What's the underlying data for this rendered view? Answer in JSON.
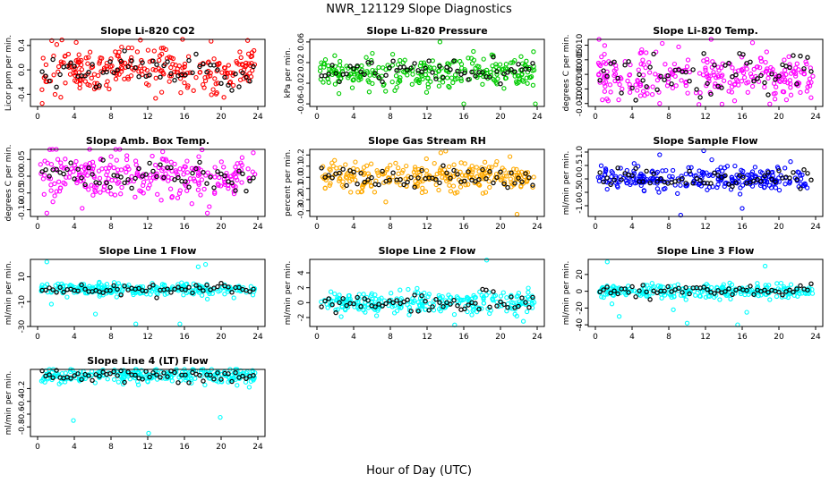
{
  "suptitle": "NWR_121129  Slope Diagnostics",
  "xlabel": "Hour of Day (UTC)",
  "chart_data": [
    {
      "type": "scatter",
      "title": "Slope Li-820 CO2",
      "ylabel": "Licor ppm per min.",
      "xlim": [
        0,
        24
      ],
      "ylim": [
        -0.6,
        0.5
      ],
      "xticks": [
        0,
        4,
        8,
        12,
        16,
        20,
        24
      ],
      "yticks": [
        -0.4,
        0.0,
        0.4
      ],
      "ytick_labels": [
        "-0.4",
        "0.0",
        "0.4"
      ],
      "spread": 0.18,
      "outliers": [
        [
          0.5,
          -0.55
        ],
        [
          4.2,
          0.45
        ],
        [
          15.8,
          0.5
        ],
        [
          20.3,
          -0.45
        ]
      ],
      "color": "#ff0000"
    },
    {
      "type": "scatter",
      "title": "Slope Li-820 Pressure",
      "ylabel": "kPa per min.",
      "xlim": [
        0,
        24
      ],
      "ylim": [
        -0.065,
        0.065
      ],
      "xticks": [
        0,
        4,
        8,
        12,
        16,
        20,
        24
      ],
      "yticks": [
        -0.06,
        -0.02,
        0.02,
        0.06
      ],
      "ytick_labels": [
        "-0.06",
        "-0.02",
        "0.02",
        "0.06"
      ],
      "spread": 0.014,
      "outliers": [
        [
          13.4,
          0.06
        ],
        [
          16.0,
          -0.06
        ],
        [
          23.8,
          -0.06
        ],
        [
          2.4,
          -0.04
        ]
      ],
      "color": "#00cc00"
    },
    {
      "type": "scatter",
      "title": "Slope Li-820 Temp.",
      "ylabel": "degrees C per min.",
      "xlim": [
        0,
        24
      ],
      "ylim": [
        -0.011,
        0.012
      ],
      "xticks": [
        0,
        4,
        8,
        12,
        16,
        20,
        24
      ],
      "yticks": [
        -0.01,
        -0.005,
        0.0,
        0.005,
        0.01
      ],
      "ytick_labels": [
        "-0.010",
        "-0.005",
        "0.000",
        "0.005",
        "0.010"
      ],
      "spread": 0.004,
      "outliers": [
        [
          0.4,
          0.012
        ],
        [
          7.0,
          -0.01
        ],
        [
          23.5,
          -0.008
        ]
      ],
      "color": "#ff00ff"
    },
    {
      "type": "scatter",
      "title": "Slope Amb. Box Temp.",
      "ylabel": "degrees C per min.",
      "xlim": [
        0,
        24
      ],
      "ylim": [
        -0.12,
        0.08
      ],
      "xticks": [
        0,
        4,
        8,
        12,
        16,
        20,
        24
      ],
      "yticks": [
        -0.1,
        -0.05,
        0.0,
        0.05
      ],
      "ytick_labels": [
        "-0.10",
        "-0.05",
        "0.00",
        "0.05"
      ],
      "spread": 0.035,
      "outliers": [
        [
          1.0,
          -0.11
        ],
        [
          23.5,
          0.07
        ],
        [
          18.5,
          -0.11
        ],
        [
          12.5,
          0.06
        ]
      ],
      "color": "#ff00ff"
    },
    {
      "type": "scatter",
      "title": "Slope Gas Stream RH",
      "ylabel": "percent per min.",
      "xlim": [
        0,
        24
      ],
      "ylim": [
        -0.35,
        0.25
      ],
      "xticks": [
        0,
        4,
        8,
        12,
        16,
        20,
        24
      ],
      "yticks": [
        -0.3,
        -0.2,
        -0.1,
        0.0,
        0.1,
        0.2
      ],
      "ytick_labels": [
        "-0.3",
        "-0.2",
        "-0.1",
        "0.0",
        "0.1",
        "0.2"
      ],
      "spread": 0.06,
      "outliers": [
        [
          13.5,
          0.22
        ],
        [
          21.8,
          -0.33
        ],
        [
          7.5,
          -0.22
        ]
      ],
      "color": "#ffaa00"
    },
    {
      "type": "scatter",
      "title": "Slope Sample Flow",
      "ylabel": "ml/min per min.",
      "xlim": [
        0,
        24
      ],
      "ylim": [
        -1.4,
        1.1
      ],
      "xticks": [
        0,
        4,
        8,
        12,
        16,
        20,
        24
      ],
      "yticks": [
        -1.0,
        -0.5,
        0.0,
        0.5,
        1.0
      ],
      "ytick_labels": [
        "-1.0",
        "-0.5",
        "0.0",
        "0.5",
        "1.0"
      ],
      "spread": 0.22,
      "outliers": [
        [
          9.3,
          -1.35
        ],
        [
          11.8,
          1.05
        ],
        [
          16.0,
          -1.1
        ],
        [
          7.0,
          0.9
        ]
      ],
      "color": "#0000ff"
    },
    {
      "type": "scatter",
      "title": "Slope Line 1 Flow",
      "ylabel": "ml/min per min.",
      "xlim": [
        0,
        24
      ],
      "ylim": [
        -30,
        24
      ],
      "xticks": [
        0,
        4,
        8,
        12,
        16,
        20,
        24
      ],
      "yticks": [
        -30,
        -10,
        10
      ],
      "ytick_labels": [
        "-30",
        "-10",
        "10"
      ],
      "spread": 2.5,
      "outliers": [
        [
          1.0,
          22
        ],
        [
          1.5,
          -12
        ],
        [
          10.7,
          -28
        ],
        [
          15.5,
          -28
        ],
        [
          17.5,
          18
        ],
        [
          18.3,
          20
        ],
        [
          18.5,
          -8
        ],
        [
          6.3,
          -20
        ]
      ],
      "color": "#00ffff"
    },
    {
      "type": "scatter",
      "title": "Slope Line 2 Flow",
      "ylabel": "ml/min per min.",
      "xlim": [
        0,
        24
      ],
      "ylim": [
        -3.2,
        5.8
      ],
      "xticks": [
        0,
        4,
        8,
        12,
        16,
        20,
        24
      ],
      "yticks": [
        -2,
        0,
        2,
        4
      ],
      "ytick_labels": [
        "-2",
        "0",
        "2",
        "4"
      ],
      "spread": 0.7,
      "outliers": [
        [
          18.5,
          5.7
        ],
        [
          15.0,
          -3.0
        ],
        [
          22.5,
          -2.5
        ]
      ],
      "color": "#00ffff"
    },
    {
      "type": "scatter",
      "title": "Slope Line 3 Flow",
      "ylabel": "ml/min per min.",
      "xlim": [
        0,
        24
      ],
      "ylim": [
        -42,
        38
      ],
      "xticks": [
        0,
        4,
        8,
        12,
        16,
        20,
        24
      ],
      "yticks": [
        -40,
        -20,
        0,
        20
      ],
      "ytick_labels": [
        "-40",
        "-20",
        "0",
        "20"
      ],
      "spread": 4,
      "outliers": [
        [
          1.3,
          35
        ],
        [
          1.8,
          -15
        ],
        [
          2.6,
          -30
        ],
        [
          10.0,
          -38
        ],
        [
          15.5,
          -40
        ],
        [
          16.5,
          -25
        ],
        [
          18.5,
          30
        ],
        [
          19.0,
          -10
        ],
        [
          8.5,
          -22
        ]
      ],
      "color": "#00ffff"
    },
    {
      "type": "scatter",
      "title": "Slope Line 4 (LT) Flow",
      "ylabel": "ml/min per min.",
      "xlim": [
        0,
        24
      ],
      "ylim": [
        -0.95,
        0.1
      ],
      "xticks": [
        0,
        4,
        8,
        12,
        16,
        20,
        24
      ],
      "yticks": [
        -0.8,
        -0.6,
        -0.4,
        -0.2
      ],
      "ytick_labels": [
        "-0.8",
        "-0.6",
        "-0.4",
        "-0.2"
      ],
      "spread": 0.06,
      "outliers": [
        [
          3.9,
          -0.7
        ],
        [
          12.1,
          -0.9
        ],
        [
          19.9,
          -0.65
        ],
        [
          16.5,
          0.05
        ]
      ],
      "color": "#00ffff"
    }
  ]
}
